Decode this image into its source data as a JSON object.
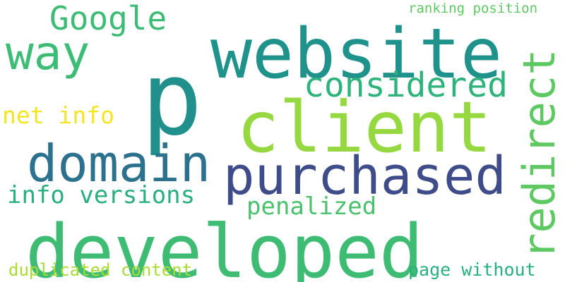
{
  "word_cloud": {
    "words": [
      {
        "text": "p",
        "color": "#21908d"
      },
      {
        "text": "website",
        "color": "#20928c"
      },
      {
        "text": "client",
        "color": "#95d840"
      },
      {
        "text": "developed",
        "color": "#3fbc73"
      },
      {
        "text": "purchased",
        "color": "#3e4c8a"
      },
      {
        "text": "domain",
        "color": "#2c728e"
      },
      {
        "text": "redirect",
        "color": "#5ec962"
      },
      {
        "text": "way",
        "color": "#3cbc75"
      },
      {
        "text": "considered",
        "color": "#2eb37c"
      },
      {
        "text": "Google",
        "color": "#3cbc75"
      },
      {
        "text": "net info",
        "color": "#f4e61e"
      },
      {
        "text": "info versions",
        "color": "#29af7f"
      },
      {
        "text": "penalized",
        "color": "#4ac16d"
      },
      {
        "text": "duplicated content",
        "color": "#a8db34"
      },
      {
        "text": "page without",
        "color": "#29af7f"
      },
      {
        "text": "ranking position",
        "color": "#5ec962"
      }
    ]
  }
}
